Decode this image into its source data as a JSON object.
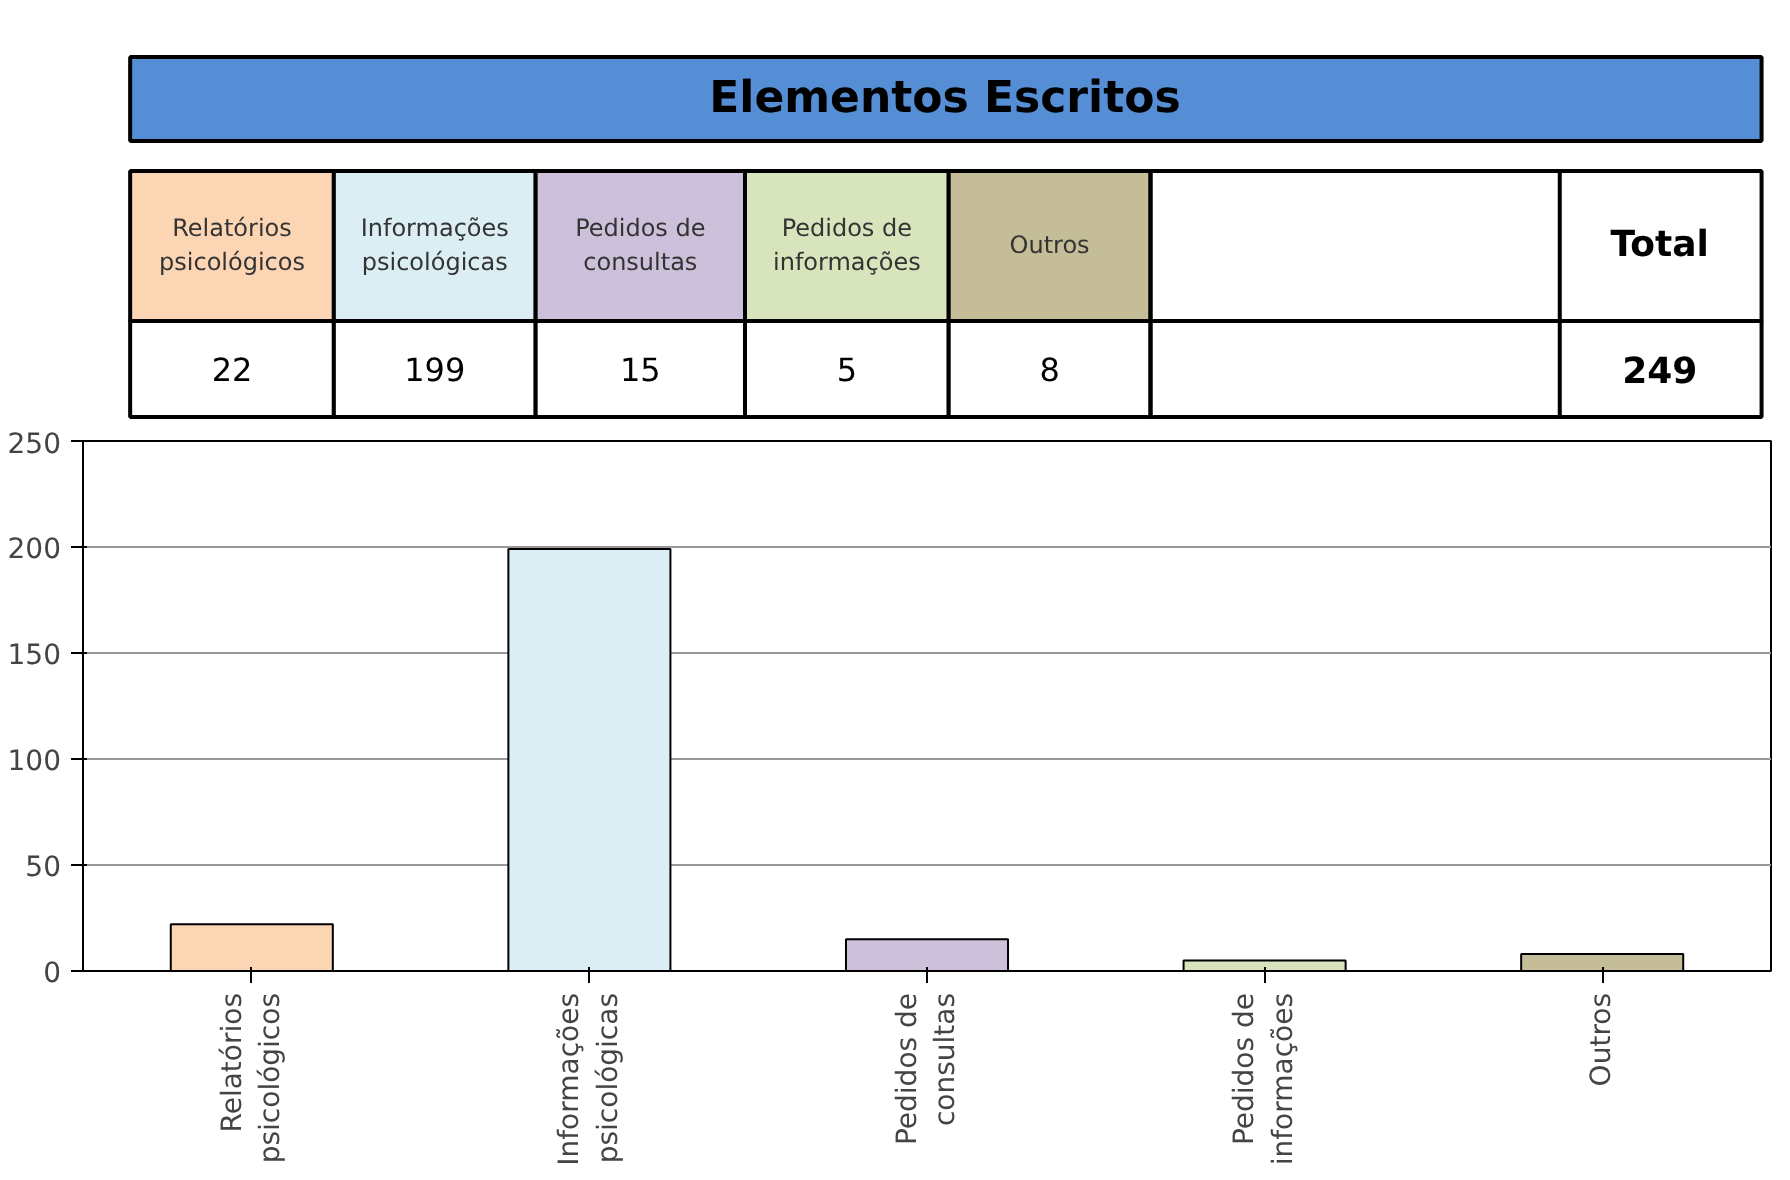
{
  "chart_data": [
    {
      "type": "other",
      "title": "Elementos Escritos",
      "categories": [
        "Relatórios psicológicos",
        "Informações psicológicas",
        "Pedidos de consultas",
        "Pedidos de informações",
        "Outros"
      ],
      "colors": [
        "#fcd5b4",
        "#daeef3",
        "#ccc0da",
        "#d8e4bc",
        "#c4bd97"
      ],
      "annotations": [
        "22",
        "199",
        "15",
        "5",
        "8",
        "Total",
        "249"
      ]
    },
    {
      "type": "bar",
      "categories": [
        "Relatórios psicológicos",
        "Informações psicológicas",
        "Pedidos de consultas",
        "Pedidos de informações",
        "Outros"
      ],
      "values": [
        22,
        199,
        15,
        5,
        8
      ],
      "colors": [
        "#fcd5b4",
        "#daeef3",
        "#ccc0da",
        "#d8e4bc",
        "#c4bd97"
      ],
      "ylim": [
        0,
        250
      ],
      "yticks": [
        0,
        50,
        100,
        150,
        200,
        250
      ],
      "grid": "y"
    }
  ]
}
